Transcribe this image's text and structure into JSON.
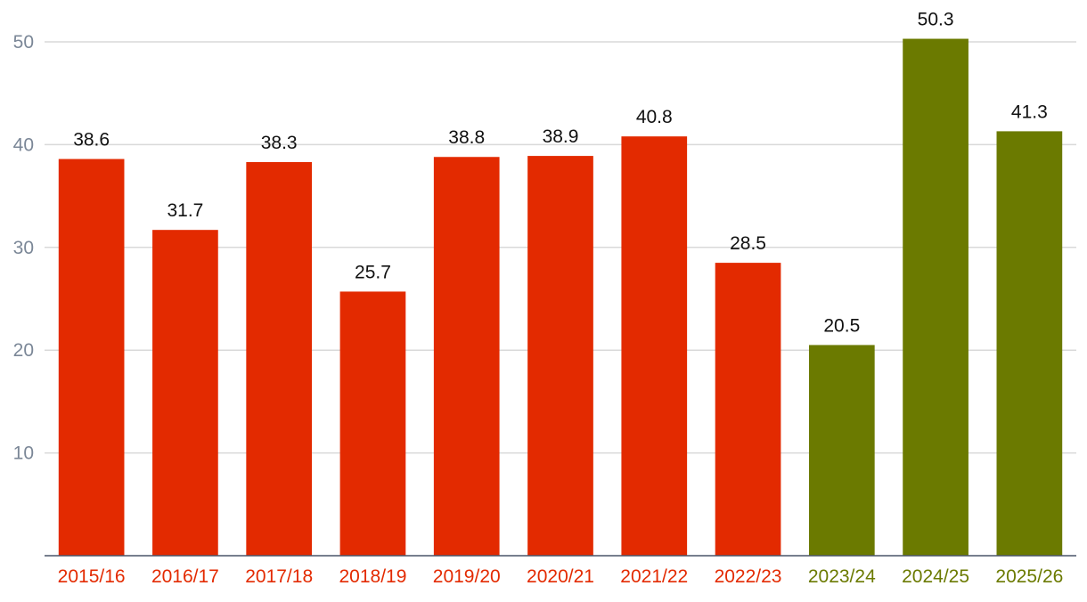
{
  "chart_data": {
    "type": "bar",
    "title": "",
    "xlabel": "",
    "ylabel": "",
    "ylim": [
      0,
      50
    ],
    "yticks": [
      "10",
      "20",
      "30",
      "40",
      "50"
    ],
    "categories": [
      "2015/16",
      "2016/17",
      "2017/18",
      "2018/19",
      "2019/20",
      "2020/21",
      "2021/22",
      "2022/23",
      "2023/24",
      "2024/25",
      "2025/26"
    ],
    "values": [
      38.6,
      31.7,
      38.3,
      25.7,
      38.8,
      38.9,
      40.8,
      28.5,
      20.5,
      50.3,
      41.3
    ],
    "value_labels": [
      "38.6",
      "31.7",
      "38.3",
      "25.7",
      "38.8",
      "38.9",
      "40.8",
      "28.5",
      "20.5",
      "50.3",
      "41.3"
    ],
    "groups": [
      "actual",
      "actual",
      "actual",
      "actual",
      "actual",
      "actual",
      "actual",
      "actual",
      "forecast",
      "forecast",
      "forecast"
    ],
    "colors": {
      "actual": "#e32a00",
      "forecast": "#6b7a00"
    },
    "grid": true
  }
}
